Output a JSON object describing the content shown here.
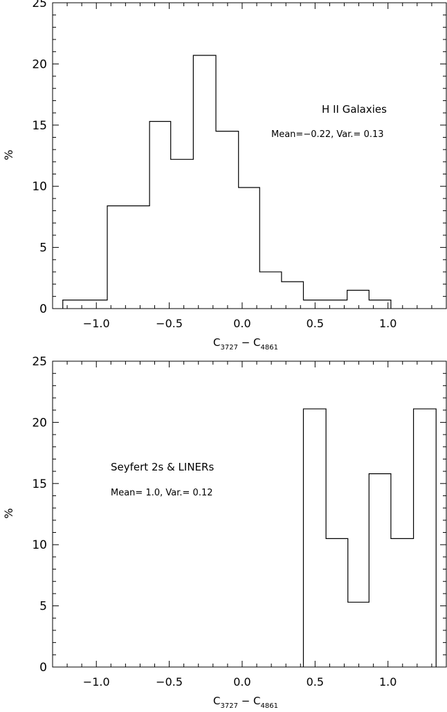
{
  "chart_data": [
    {
      "type": "bar",
      "title": "",
      "xlabel": "C",
      "xlabel_sub1": "3727",
      "xlabel_mid": " − C",
      "xlabel_sub2": "4861",
      "ylabel": "%",
      "xlim": [
        -1.3,
        1.4
      ],
      "ylim": [
        0,
        25
      ],
      "xticks": [
        -1.0,
        -0.5,
        0.0,
        0.5,
        1.0
      ],
      "xtick_labels": [
        "−1.0",
        "−0.5",
        "0.0",
        "0.5",
        "1.0"
      ],
      "yticks": [
        0,
        5,
        10,
        15,
        20,
        25
      ],
      "ytick_labels": [
        "0",
        "5",
        "10",
        "15",
        "20",
        "25"
      ],
      "annotation_title": "H II Galaxies",
      "annotation_stats": "Mean=−0.22, Var.= 0.13",
      "bin_edges": [
        -1.23,
        -0.925,
        -0.635,
        -0.49,
        -0.335,
        -0.18,
        -0.025,
        0.12,
        0.27,
        0.42,
        0.72,
        0.87,
        1.02
      ],
      "values": [
        0.7,
        8.4,
        15.3,
        12.2,
        20.7,
        14.5,
        9.9,
        3.0,
        2.2,
        0.7,
        1.5,
        0.7
      ]
    },
    {
      "type": "bar",
      "title": "",
      "xlabel": "C",
      "xlabel_sub1": "3727",
      "xlabel_mid": " − C",
      "xlabel_sub2": "4861",
      "ylabel": "%",
      "xlim": [
        -1.3,
        1.4
      ],
      "ylim": [
        0,
        25
      ],
      "xticks": [
        -1.0,
        -0.5,
        0.0,
        0.5,
        1.0
      ],
      "xtick_labels": [
        "−1.0",
        "−0.5",
        "0.0",
        "0.5",
        "1.0"
      ],
      "yticks": [
        0,
        5,
        10,
        15,
        20,
        25
      ],
      "ytick_labels": [
        "0",
        "5",
        "10",
        "15",
        "20",
        "25"
      ],
      "annotation_title": "Seyfert 2s & LINERs",
      "annotation_stats": "Mean= 1.0, Var.= 0.12",
      "bin_edges": [
        0.42,
        0.575,
        0.725,
        0.87,
        1.02,
        1.175,
        1.33
      ],
      "values": [
        21.1,
        10.5,
        5.3,
        15.8,
        10.5,
        21.1
      ]
    }
  ]
}
